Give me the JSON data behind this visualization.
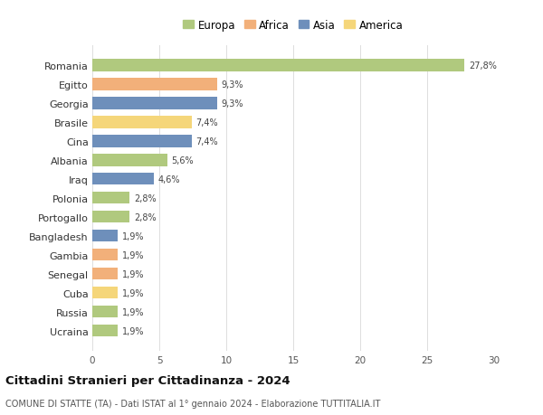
{
  "countries": [
    "Romania",
    "Egitto",
    "Georgia",
    "Brasile",
    "Cina",
    "Albania",
    "Iraq",
    "Polonia",
    "Portogallo",
    "Bangladesh",
    "Gambia",
    "Senegal",
    "Cuba",
    "Russia",
    "Ucraina"
  ],
  "values": [
    27.8,
    9.3,
    9.3,
    7.4,
    7.4,
    5.6,
    4.6,
    2.8,
    2.8,
    1.9,
    1.9,
    1.9,
    1.9,
    1.9,
    1.9
  ],
  "labels": [
    "27,8%",
    "9,3%",
    "9,3%",
    "7,4%",
    "7,4%",
    "5,6%",
    "4,6%",
    "2,8%",
    "2,8%",
    "1,9%",
    "1,9%",
    "1,9%",
    "1,9%",
    "1,9%",
    "1,9%"
  ],
  "colors": [
    "#b0c97e",
    "#f2b07a",
    "#6e8fbb",
    "#f5d67a",
    "#6e8fbb",
    "#b0c97e",
    "#6e8fbb",
    "#b0c97e",
    "#b0c97e",
    "#6e8fbb",
    "#f2b07a",
    "#f2b07a",
    "#f5d67a",
    "#b0c97e",
    "#b0c97e"
  ],
  "legend_labels": [
    "Europa",
    "Africa",
    "Asia",
    "America"
  ],
  "legend_colors": [
    "#b0c97e",
    "#f2b07a",
    "#6e8fbb",
    "#f5d67a"
  ],
  "xlim": [
    0,
    30
  ],
  "xticks": [
    0,
    5,
    10,
    15,
    20,
    25,
    30
  ],
  "title": "Cittadini Stranieri per Cittadinanza - 2024",
  "subtitle": "COMUNE DI STATTE (TA) - Dati ISTAT al 1° gennaio 2024 - Elaborazione TUTTITALIA.IT",
  "bg_color": "#ffffff",
  "grid_color": "#dddddd",
  "bar_height": 0.65,
  "label_fontsize": 7.0,
  "ytick_fontsize": 8.0,
  "xtick_fontsize": 7.5
}
